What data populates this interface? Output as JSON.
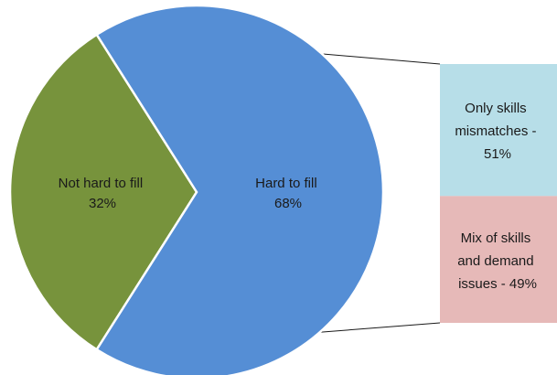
{
  "chart_data": {
    "type": "pie",
    "slices": [
      {
        "label": "Not hard to fill",
        "value": 32,
        "value_text": "32%",
        "color": "#77933c"
      },
      {
        "label": "Hard to fill",
        "value": 68,
        "value_text": "68%",
        "color": "#558ed5"
      }
    ],
    "breakdown": {
      "of": "Hard to fill",
      "type": "stacked-bar",
      "segments": [
        {
          "label": "Only skills mismatches - 51%",
          "value": 51,
          "color": "#b7dee8"
        },
        {
          "label": "Mix of skills and demand issues - 49%",
          "value": 49,
          "color": "#e6b9b8"
        }
      ]
    },
    "title": "",
    "legend": "none"
  }
}
